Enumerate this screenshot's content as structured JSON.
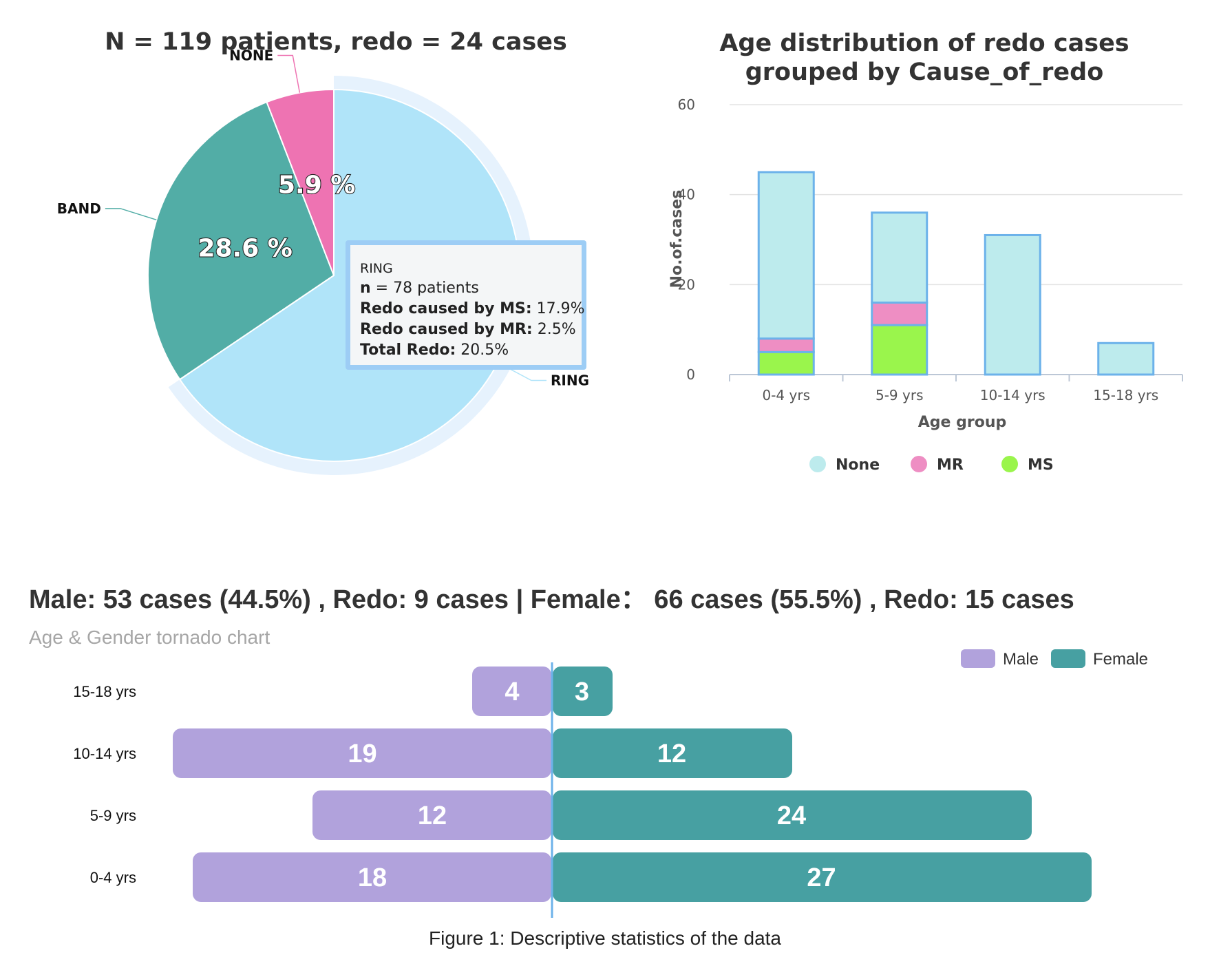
{
  "pie": {
    "title": "N = 119 patients, redo = 24 cases",
    "tooltip": {
      "title": "RING",
      "rows": [
        {
          "label": "n",
          "value": " = 78 patients"
        },
        {
          "label": "Redo caused by MS:",
          "value": " 17.9%"
        },
        {
          "label": "Redo caused by MR:",
          "value": " 2.5%"
        },
        {
          "label": "Total Redo:",
          "value": " 20.5%"
        }
      ]
    }
  },
  "stacked": {
    "title_line1": "Age distribution of redo cases",
    "title_line2": "grouped by Cause_of_redo",
    "ylabel": "No.of.cases",
    "xlabel": "Age group"
  },
  "tornado": {
    "title": "Male: 53 cases (44.5%) , Redo: 9 cases | Female：  66 cases (55.5%) , Redo: 15 cases",
    "subtitle": "Age & Gender tornado chart"
  },
  "caption": "Figure 1: Descriptive statistics of the data",
  "chart_data": [
    {
      "type": "pie",
      "slices": [
        {
          "name": "RING",
          "value": 78,
          "percent_label": "",
          "color": "#b0e4f9",
          "selected": true
        },
        {
          "name": "BAND",
          "value": 34,
          "percent_label": "28.6 %",
          "color": "#52ada6"
        },
        {
          "name": "NONE",
          "value": 7,
          "percent_label": "5.9 %",
          "color": "#ee73b2"
        }
      ]
    },
    {
      "type": "bar",
      "stacked": true,
      "categories": [
        "0-4 yrs",
        "5-9 yrs",
        "10-14 yrs",
        "15-18 yrs"
      ],
      "series": [
        {
          "name": "None",
          "values": [
            37,
            20,
            31,
            7
          ],
          "color": "#bdebed"
        },
        {
          "name": "MR",
          "values": [
            3,
            5,
            0,
            0
          ],
          "color": "#ee8ec3"
        },
        {
          "name": "MS",
          "values": [
            5,
            11,
            0,
            0
          ],
          "color": "#9af54c"
        }
      ],
      "border_color": "#6cb2ea",
      "yticks": [
        0,
        20,
        40,
        60
      ],
      "ylim": [
        0,
        60
      ],
      "legend": "bottom",
      "grid": true
    },
    {
      "type": "bar",
      "orientation": "horizontal",
      "categories": [
        "0-4 yrs",
        "5-9 yrs",
        "10-14 yrs",
        "15-18 yrs"
      ],
      "series": [
        {
          "name": "Male",
          "values": [
            18,
            12,
            19,
            4
          ],
          "color": "#b1a2dc"
        },
        {
          "name": "Female",
          "values": [
            27,
            24,
            12,
            3
          ],
          "color": "#47a0a2"
        }
      ],
      "divider_color": "#6cb2ea",
      "legend": "top-right"
    }
  ]
}
